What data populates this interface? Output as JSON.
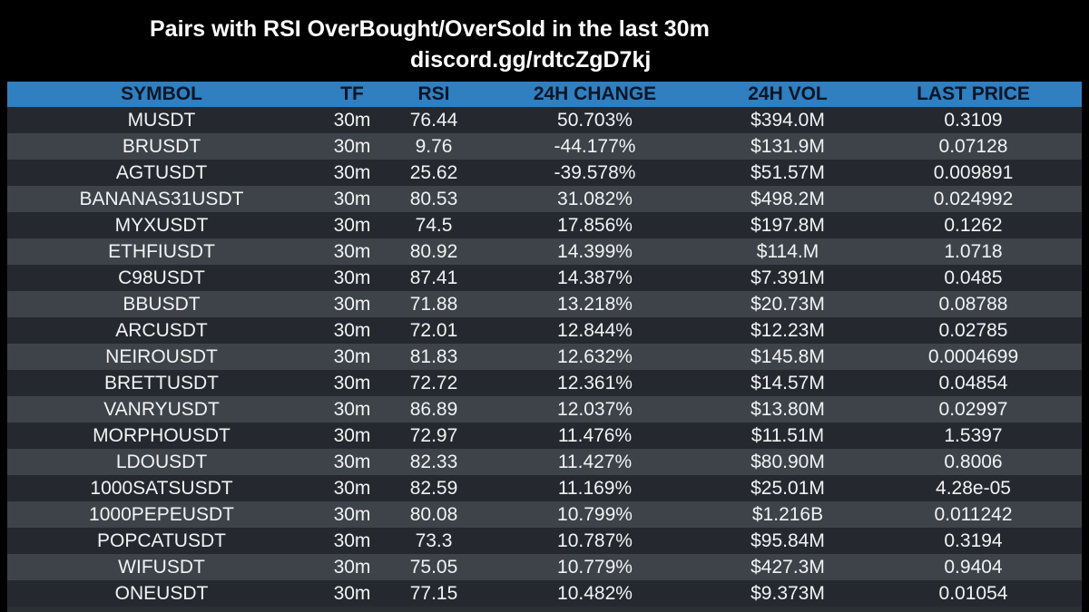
{
  "header": {
    "title": "Pairs with RSI OverBought/OverSold in the last 30m",
    "subtitle": "discord.gg/rdtcZgD7kj"
  },
  "table": {
    "columns": [
      "SYMBOL",
      "TF",
      "RSI",
      "24H CHANGE",
      "24H VOL",
      "LAST PRICE"
    ],
    "rows": [
      [
        "MUSDT",
        "30m",
        "76.44",
        "50.703%",
        "$394.0M",
        "0.3109"
      ],
      [
        "BRUSDT",
        "30m",
        "9.76",
        "-44.177%",
        "$131.9M",
        "0.07128"
      ],
      [
        "AGTUSDT",
        "30m",
        "25.62",
        "-39.578%",
        "$51.57M",
        "0.009891"
      ],
      [
        "BANANAS31USDT",
        "30m",
        "80.53",
        "31.082%",
        "$498.2M",
        "0.024992"
      ],
      [
        "MYXUSDT",
        "30m",
        "74.5",
        "17.856%",
        "$197.8M",
        "0.1262"
      ],
      [
        "ETHFIUSDT",
        "30m",
        "80.92",
        "14.399%",
        "$114.M",
        "1.0718"
      ],
      [
        "C98USDT",
        "30m",
        "87.41",
        "14.387%",
        "$7.391M",
        "0.0485"
      ],
      [
        "BBUSDT",
        "30m",
        "71.88",
        "13.218%",
        "$20.73M",
        "0.08788"
      ],
      [
        "ARCUSDT",
        "30m",
        "72.01",
        "12.844%",
        "$12.23M",
        "0.02785"
      ],
      [
        "NEIROUSDT",
        "30m",
        "81.83",
        "12.632%",
        "$145.8M",
        "0.0004699"
      ],
      [
        "BRETTUSDT",
        "30m",
        "72.72",
        "12.361%",
        "$14.57M",
        "0.04854"
      ],
      [
        "VANRYUSDT",
        "30m",
        "86.89",
        "12.037%",
        "$13.80M",
        "0.02997"
      ],
      [
        "MORPHOUSDT",
        "30m",
        "72.97",
        "11.476%",
        "$11.51M",
        "1.5397"
      ],
      [
        "LDOUSDT",
        "30m",
        "82.33",
        "11.427%",
        "$80.90M",
        "0.8006"
      ],
      [
        "1000SATSUSDT",
        "30m",
        "82.59",
        "11.169%",
        "$25.01M",
        "4.28e-05"
      ],
      [
        "1000PEPEUSDT",
        "30m",
        "80.08",
        "10.799%",
        "$1.216B",
        "0.011242"
      ],
      [
        "POPCATUSDT",
        "30m",
        "73.3",
        "10.787%",
        "$95.84M",
        "0.3194"
      ],
      [
        "WIFUSDT",
        "30m",
        "75.05",
        "10.779%",
        "$427.3M",
        "0.9404"
      ],
      [
        "ONEUSDT",
        "30m",
        "77.15",
        "10.482%",
        "$9.373M",
        "0.01054"
      ]
    ]
  },
  "colors": {
    "background": "#000000",
    "header_row": "#2f7fc1",
    "header_text": "#0c1626",
    "row_dark": "#25292f",
    "row_light": "#3d4349",
    "text": "#f2f2f2"
  }
}
